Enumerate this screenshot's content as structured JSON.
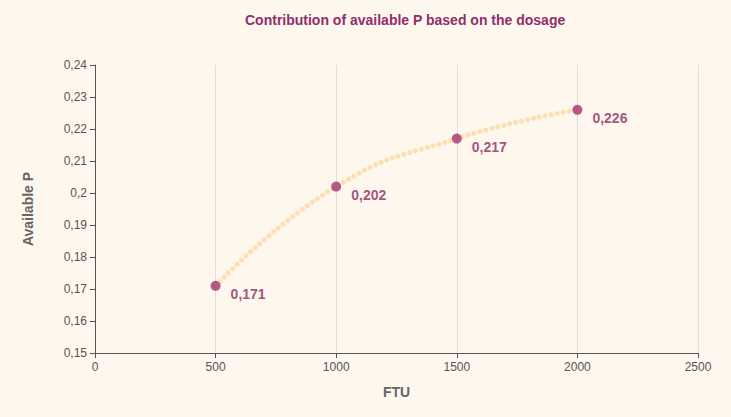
{
  "chart_data": {
    "type": "scatter",
    "title": "Contribution of available P based on the dosage",
    "x_label": "FTU",
    "y_label": "Available P",
    "x": [
      500,
      1000,
      1500,
      2000
    ],
    "series": [
      {
        "type": "line",
        "color": "#fce0b3",
        "line_style": "dotted",
        "values": [
          0.171,
          0.202,
          0.217,
          0.226
        ]
      },
      {
        "type": "scatter",
        "color": "#a5326f",
        "marker": "circle",
        "data_labels": true,
        "values": [
          0.171,
          0.202,
          0.217,
          0.226
        ],
        "value_labels": [
          "0,171",
          "0,202",
          "0,217",
          "0,226"
        ]
      }
    ],
    "xlim": [
      0,
      2500
    ],
    "xticks": [
      0,
      500,
      1000,
      1500,
      2000,
      2500
    ],
    "ylim": [
      0.15,
      0.24
    ],
    "yticks": [
      {
        "value": 0.15,
        "label": "0,15"
      },
      {
        "value": 0.16,
        "label": "0,16"
      },
      {
        "value": 0.17,
        "label": "0,17"
      },
      {
        "value": 0.18,
        "label": "0,18"
      },
      {
        "value": 0.19,
        "label": "0,19"
      },
      {
        "value": 0.2,
        "label": "0,2"
      },
      {
        "value": 0.21,
        "label": "0,21"
      },
      {
        "value": 0.22,
        "label": "0,22"
      },
      {
        "value": 0.23,
        "label": "0,23"
      },
      {
        "value": 0.24,
        "label": "0,24"
      }
    ],
    "grid": true
  }
}
